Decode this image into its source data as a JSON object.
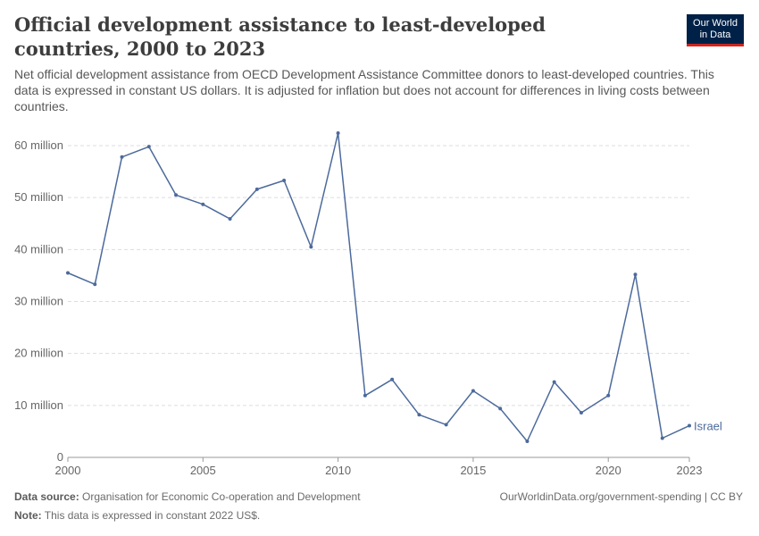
{
  "header": {
    "title": "Official development assistance to least-developed countries, 2000 to 2023",
    "subtitle": "Net official development assistance from OECD Development Assistance Committee donors to least-developed countries. This data is expressed in constant US dollars. It is adjusted for inflation but does not account for differences in living costs between countries.",
    "logo_line1": "Our World",
    "logo_line2": "in Data"
  },
  "footer": {
    "source_label": "Data source:",
    "source_text": "Organisation for Economic Co-operation and Development",
    "note_label": "Note:",
    "note_text": "This data is expressed in constant 2022 US$.",
    "url": "OurWorldinData.org/government-spending | CC BY"
  },
  "colors": {
    "series": "#4c6a9c",
    "grid": "#dddddd",
    "axis": "#666666"
  },
  "chart_data": {
    "type": "line",
    "x": [
      2000,
      2001,
      2002,
      2003,
      2004,
      2005,
      2006,
      2007,
      2008,
      2009,
      2010,
      2011,
      2012,
      2013,
      2014,
      2015,
      2016,
      2017,
      2018,
      2019,
      2020,
      2021,
      2022,
      2023
    ],
    "series": [
      {
        "name": "Israel",
        "values": [
          35.5,
          33.3,
          57.8,
          59.8,
          50.5,
          48.7,
          45.9,
          51.6,
          53.3,
          40.5,
          62.4,
          11.9,
          15.0,
          8.2,
          6.3,
          12.8,
          9.4,
          3.1,
          14.5,
          8.6,
          11.9,
          35.2,
          3.7,
          6.1
        ]
      }
    ],
    "xlim": [
      2000,
      2023
    ],
    "ylim": [
      0,
      60
    ],
    "x_ticks": [
      "2000",
      "2005",
      "2010",
      "2015",
      "2020",
      "2023"
    ],
    "y_ticks": [
      "0",
      "10 million",
      "20 million",
      "30 million",
      "40 million",
      "50 million",
      "60 million"
    ],
    "grid": "horizontal dashed",
    "legend": "inline label at line end"
  }
}
